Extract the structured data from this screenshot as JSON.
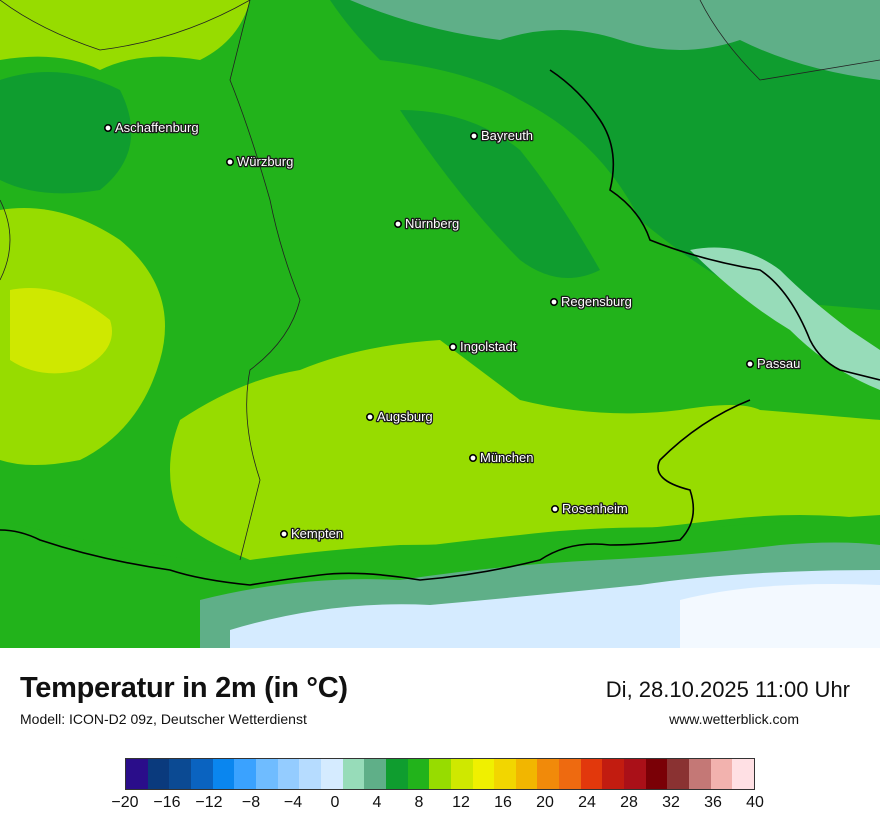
{
  "map": {
    "title": "Temperatur in 2m (in °C)",
    "model": "Modell: ICON-D2 09z, Deutscher Wetterdienst",
    "datetime": "Di, 28.10.2025 11:00 Uhr",
    "source": "www.wetterblick.com",
    "cities": [
      {
        "name": "Aschaffenburg"
      },
      {
        "name": "Würzburg"
      },
      {
        "name": "Bayreuth"
      },
      {
        "name": "Nürnberg"
      },
      {
        "name": "Regensburg"
      },
      {
        "name": "Ingolstadt"
      },
      {
        "name": "Passau"
      },
      {
        "name": "Augsburg"
      },
      {
        "name": "München"
      },
      {
        "name": "Rosenheim"
      },
      {
        "name": "Kempten"
      }
    ]
  },
  "legend": {
    "unit": "°C",
    "ticks": [
      "−20",
      "−16",
      "−12",
      "−8",
      "−4",
      "0",
      "4",
      "8",
      "12",
      "16",
      "20",
      "24",
      "28",
      "32",
      "36",
      "40"
    ],
    "colors": [
      "#2a0d8a",
      "#0a3a7d",
      "#0b4a93",
      "#0a63c0",
      "#0a86ef",
      "#3aa2ff",
      "#6fbcff",
      "#94ccff",
      "#b6dcff",
      "#d5ebff",
      "#97dcb9",
      "#5faf88",
      "#0f9d2f",
      "#22b31b",
      "#97dc00",
      "#cfe800",
      "#f0f000",
      "#f2d600",
      "#f2b600",
      "#f18a0a",
      "#ee6a10",
      "#e2380c",
      "#c21c10",
      "#aa1018",
      "#7a0006",
      "#8a3232",
      "#c47876",
      "#f2b2ae",
      "#ffe0e4"
    ]
  }
}
